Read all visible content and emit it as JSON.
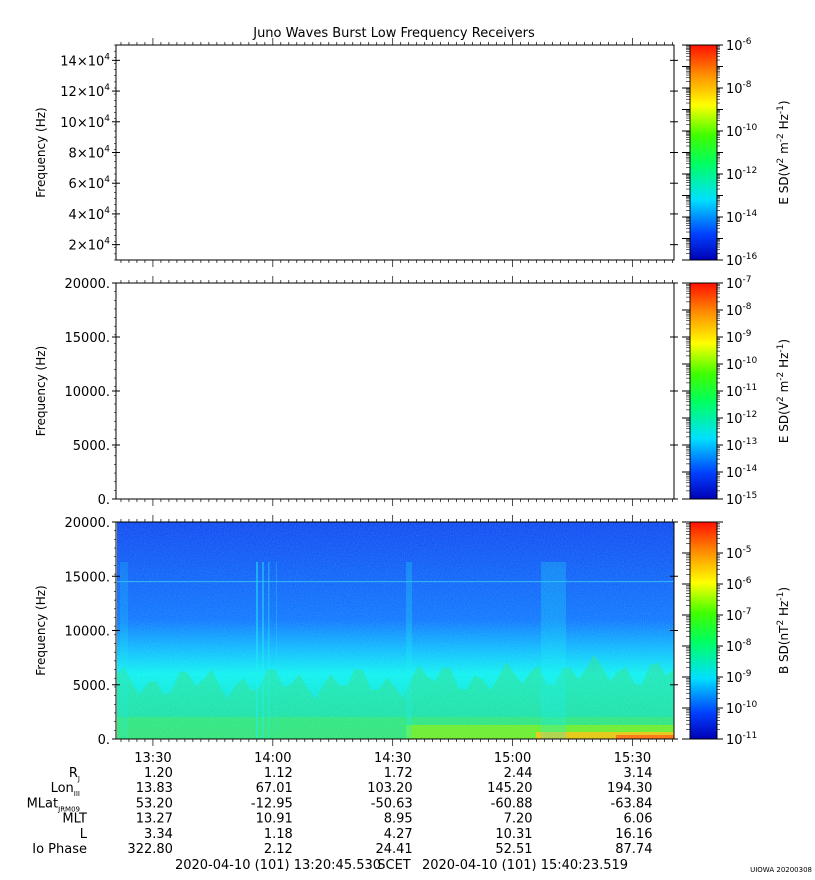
{
  "title": "Juno Waves Burst Low Frequency Receivers",
  "stamp": "UIOWA 20200308",
  "chart_data": [
    {
      "type": "heatmap",
      "panel": "E field high band",
      "ylabel": "Frequency (Hz)",
      "ylim": [
        10000,
        150000
      ],
      "y_ticks": [
        20000,
        40000,
        60000,
        80000,
        100000,
        120000,
        140000
      ],
      "y_tick_labels": [
        {
          "m": "2",
          "e": "4"
        },
        {
          "m": "4",
          "e": "4"
        },
        {
          "m": "6",
          "e": "4"
        },
        {
          "m": "8",
          "e": "4"
        },
        {
          "m": "10",
          "e": "4"
        },
        {
          "m": "12",
          "e": "4"
        },
        {
          "m": "14",
          "e": "4"
        }
      ],
      "has_data": false,
      "colorbar": {
        "label": "E SD (V² m⁻² Hz⁻¹)",
        "label_parts": {
          "base": "E SD(V",
          "e1": "2",
          "mid": " m",
          "e2": "-2",
          "tail": " Hz",
          "e3": "-1",
          "close": ")"
        },
        "scale": "log",
        "range_exp": [
          -16,
          -6
        ],
        "tick_exps": [
          "-6",
          "-8",
          "-10",
          "-12",
          "-14",
          "-16"
        ],
        "colormap": "rainbow"
      }
    },
    {
      "type": "heatmap",
      "panel": "E field low band",
      "ylabel": "Frequency (Hz)",
      "ylim": [
        0,
        20000
      ],
      "y_ticks": [
        0,
        5000,
        10000,
        15000,
        20000
      ],
      "y_tick_labels": [
        "0.",
        "5000.",
        "10000.",
        "15000.",
        "20000."
      ],
      "has_data": false,
      "colorbar": {
        "label": "E SD (V² m⁻² Hz⁻¹)",
        "label_parts": {
          "base": "E SD(V",
          "e1": "2",
          "mid": " m",
          "e2": "-2",
          "tail": " Hz",
          "e3": "-1",
          "close": ")"
        },
        "scale": "log",
        "range_exp": [
          -15,
          -7
        ],
        "tick_exps": [
          "-7",
          "-8",
          "-9",
          "-10",
          "-11",
          "-12",
          "-13",
          "-14",
          "-15"
        ],
        "colormap": "rainbow"
      }
    },
    {
      "type": "heatmap",
      "panel": "B field",
      "ylabel": "Frequency (Hz)",
      "ylim": [
        0,
        20000
      ],
      "y_ticks": [
        0,
        5000,
        10000,
        15000,
        20000
      ],
      "y_tick_labels": [
        "0.",
        "5000.",
        "10000.",
        "15000.",
        "20000."
      ],
      "has_data": true,
      "x_range": [
        "13:20:45.530",
        "15:40:23.519"
      ],
      "colorbar": {
        "label": "B SD (nT² Hz⁻¹)",
        "label_parts": {
          "base": "B SD(nT",
          "e1": "2",
          "mid": " Hz",
          "e2": "-1",
          "close": ")"
        },
        "scale": "log",
        "range_exp": [
          -11,
          -4
        ],
        "tick_exps": [
          "-5",
          "-6",
          "-7",
          "-8",
          "-9",
          "-10",
          "-11"
        ],
        "colormap": "rainbow"
      }
    }
  ],
  "x_axis": {
    "start": "13:20:45.530",
    "end": "15:40:23.519",
    "tick_labels": [
      "13:30",
      "14:00",
      "14:30",
      "15:00",
      "15:30"
    ],
    "start_label": "2020-04-10 (101) 13:20:45.530",
    "mid_label": "SCET",
    "end_label": "2020-04-10 (101) 15:40:23.519"
  },
  "ephemeris": [
    {
      "label": "R",
      "sub": "J",
      "values": [
        "1.20",
        "1.12",
        "1.72",
        "2.44",
        "3.14"
      ]
    },
    {
      "label": "Lon",
      "sub": "III",
      "values": [
        "13.83",
        "67.01",
        "103.20",
        "145.20",
        "194.30"
      ]
    },
    {
      "label": "MLat",
      "sub": "JRM09",
      "values": [
        "53.20",
        "-12.95",
        "-50.63",
        "-60.88",
        "-63.84"
      ]
    },
    {
      "label": "MLT",
      "sub": "",
      "values": [
        "13.27",
        "10.91",
        "8.95",
        "7.20",
        "6.06"
      ]
    },
    {
      "label": "L",
      "sub": "",
      "values": [
        "3.34",
        "1.18",
        "4.27",
        "10.31",
        "16.16"
      ]
    },
    {
      "label": "Io Phase",
      "sub": "",
      "values": [
        "322.80",
        "2.12",
        "24.41",
        "52.51",
        "87.74"
      ]
    }
  ]
}
